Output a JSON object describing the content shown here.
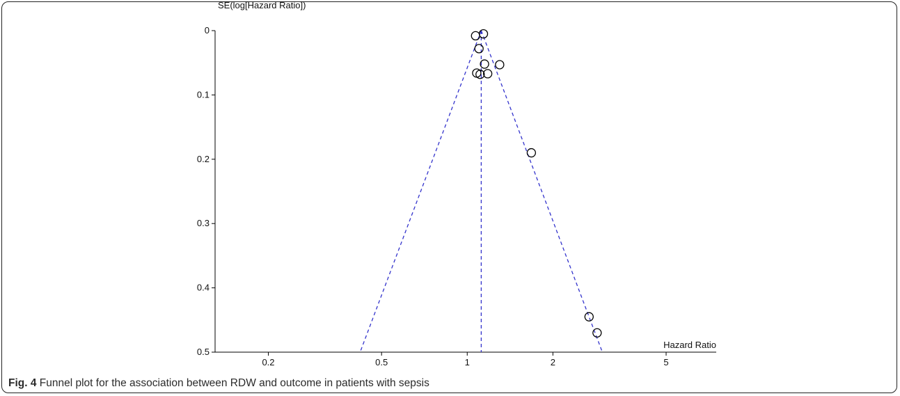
{
  "figure": {
    "label": "Fig. 4",
    "caption": "Funnel plot for the association between RDW and outcome in patients with sepsis"
  },
  "colors": {
    "axis": "#000000",
    "funnel_lines": "#3333cc",
    "points": "#000000"
  },
  "chart_data": {
    "type": "scatter",
    "subtype": "funnel",
    "title": "",
    "xlabel": "Hazard Ratio",
    "ylabel": "SE(log[Hazard Ratio])",
    "x_scale": "log",
    "xlim": [
      0.13,
      7.5
    ],
    "ylim": [
      0,
      0.5
    ],
    "y_inverted": true,
    "x_ticks": [
      0.2,
      0.5,
      1,
      2,
      5
    ],
    "x_tick_labels": [
      "0.2",
      "0.5",
      "1",
      "2",
      "5"
    ],
    "y_ticks": [
      0,
      0.1,
      0.2,
      0.3,
      0.4,
      0.5
    ],
    "y_tick_labels": [
      "0",
      "0.1",
      "0.2",
      "0.3",
      "0.4",
      "0.5"
    ],
    "grid": false,
    "pooled_estimate": 1.12,
    "funnel": {
      "center": 1.12,
      "se_max": 0.5,
      "line_style": "dashed"
    },
    "points": [
      {
        "x": 1.07,
        "y": 0.008
      },
      {
        "x": 1.14,
        "y": 0.005
      },
      {
        "x": 1.1,
        "y": 0.028
      },
      {
        "x": 1.15,
        "y": 0.052
      },
      {
        "x": 1.3,
        "y": 0.053
      },
      {
        "x": 1.08,
        "y": 0.066
      },
      {
        "x": 1.11,
        "y": 0.068
      },
      {
        "x": 1.18,
        "y": 0.067
      },
      {
        "x": 1.68,
        "y": 0.19
      },
      {
        "x": 2.68,
        "y": 0.445
      },
      {
        "x": 2.86,
        "y": 0.47
      }
    ]
  }
}
